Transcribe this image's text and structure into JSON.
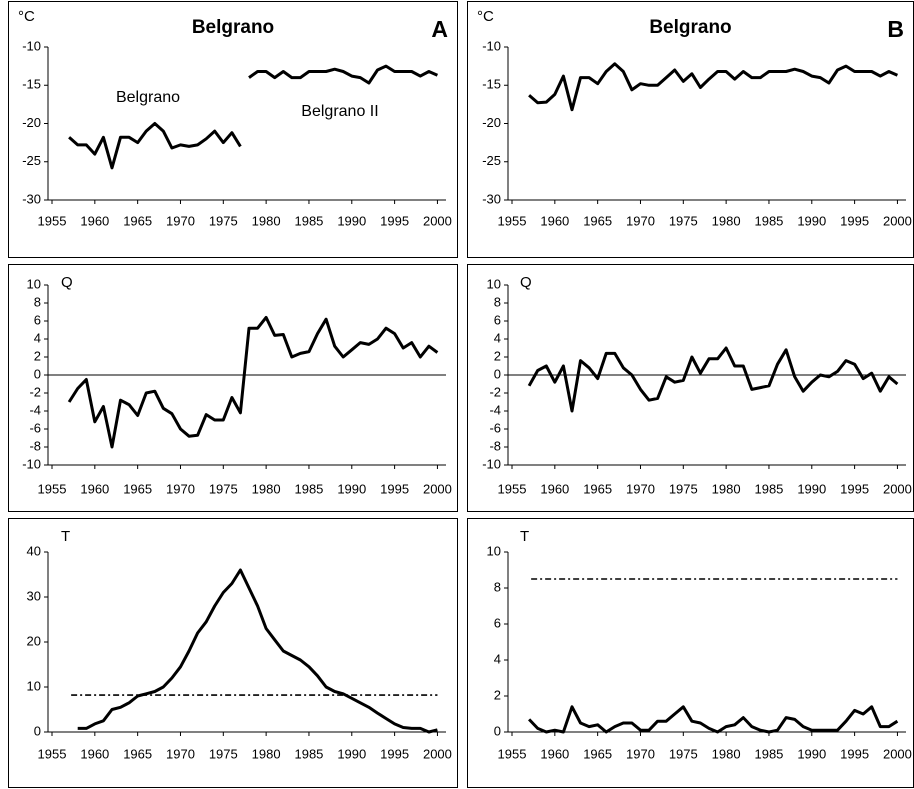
{
  "chart_data": [
    {
      "type": "line",
      "title": "Belgrano",
      "panel": "A",
      "y_label": "°C",
      "x": [
        1957,
        1958,
        1959,
        1960,
        1961,
        1962,
        1963,
        1964,
        1965,
        1966,
        1967,
        1968,
        1969,
        1970,
        1971,
        1972,
        1973,
        1974,
        1975,
        1976,
        1977,
        1978,
        1979,
        1980,
        1981,
        1982,
        1983,
        1984,
        1985,
        1986,
        1987,
        1988,
        1989,
        1990,
        1991,
        1992,
        1993,
        1994,
        1995,
        1996,
        1997,
        1998,
        1999,
        2000
      ],
      "series": [
        {
          "name": "Belgrano",
          "color": "#000000",
          "values": [
            -21.8,
            -22.8,
            -22.8,
            -24,
            -21.8,
            -25.8,
            -21.8,
            -21.8,
            -22.5,
            -21,
            -20,
            -21,
            -23.2,
            -22.8,
            -23,
            -22.8,
            -22,
            -21,
            -22.5,
            -21.2,
            -23,
            null,
            null,
            null,
            null,
            null,
            null,
            null,
            null,
            null,
            null,
            null,
            null,
            null,
            null,
            null,
            null,
            null,
            null,
            null,
            null,
            null,
            null,
            null
          ]
        },
        {
          "name": "Belgrano II",
          "color": "#000000",
          "values": [
            null,
            null,
            null,
            null,
            null,
            null,
            null,
            null,
            null,
            null,
            null,
            null,
            null,
            null,
            null,
            null,
            null,
            null,
            null,
            null,
            null,
            -14,
            -13.2,
            -13.2,
            -14,
            -13.2,
            -14,
            -14,
            -13.2,
            -13.2,
            -13.2,
            -12.9,
            -13.2,
            -13.8,
            -14,
            -14.7,
            -13,
            -12.5,
            -13.2,
            -13.2,
            -13.2,
            -13.8,
            -13.2,
            -13.7
          ]
        }
      ],
      "xlim": [
        1955,
        2001
      ],
      "xticks": [
        1955,
        1960,
        1965,
        1970,
        1975,
        1980,
        1985,
        1990,
        1995,
        2000
      ],
      "ylim": [
        -30,
        -10
      ],
      "yticks": [
        -10,
        -15,
        -20,
        -25,
        -30
      ]
    },
    {
      "type": "line",
      "title": "Belgrano",
      "panel": "B",
      "y_label": "°C",
      "x": [
        1957,
        1958,
        1959,
        1960,
        1961,
        1962,
        1963,
        1964,
        1965,
        1966,
        1967,
        1968,
        1969,
        1970,
        1971,
        1972,
        1973,
        1974,
        1975,
        1976,
        1977,
        1978,
        1979,
        1980,
        1981,
        1982,
        1983,
        1984,
        1985,
        1986,
        1987,
        1988,
        1989,
        1990,
        1991,
        1992,
        1993,
        1994,
        1995,
        1996,
        1997,
        1998,
        1999,
        2000
      ],
      "series": [
        {
          "color": "#000000",
          "values": [
            -16.3,
            -17.3,
            -17.2,
            -16.2,
            -13.8,
            -18.2,
            -14,
            -14,
            -14.8,
            -13.2,
            -12.2,
            -13.2,
            -15.6,
            -14.8,
            -15,
            -15,
            -14,
            -13,
            -14.5,
            -13.5,
            -15.3,
            -14.2,
            -13.2,
            -13.2,
            -14.2,
            -13.2,
            -14,
            -14,
            -13.2,
            -13.2,
            -13.2,
            -12.9,
            -13.2,
            -13.8,
            -14,
            -14.7,
            -13,
            -12.5,
            -13.2,
            -13.2,
            -13.2,
            -13.8,
            -13.2,
            -13.7
          ]
        }
      ],
      "xlim": [
        1955,
        2001
      ],
      "xticks": [
        1955,
        1960,
        1965,
        1970,
        1975,
        1980,
        1985,
        1990,
        1995,
        2000
      ],
      "ylim": [
        -30,
        -10
      ],
      "yticks": [
        -10,
        -15,
        -20,
        -25,
        -30
      ]
    },
    {
      "type": "line",
      "y_label": "Q",
      "zero_line": true,
      "x": [
        1957,
        1958,
        1959,
        1960,
        1961,
        1962,
        1963,
        1964,
        1965,
        1966,
        1967,
        1968,
        1969,
        1970,
        1971,
        1972,
        1973,
        1974,
        1975,
        1976,
        1977,
        1978,
        1979,
        1980,
        1981,
        1982,
        1983,
        1984,
        1985,
        1986,
        1987,
        1988,
        1989,
        1990,
        1991,
        1992,
        1993,
        1994,
        1995,
        1996,
        1997,
        1998,
        1999,
        2000
      ],
      "series": [
        {
          "color": "#000000",
          "values": [
            -3,
            -1.5,
            -0.5,
            -5.2,
            -3.5,
            -8,
            -2.8,
            -3.3,
            -4.5,
            -2,
            -1.8,
            -3.7,
            -4.3,
            -6,
            -6.8,
            -6.7,
            -4.4,
            -5,
            -5,
            -2.5,
            -4.2,
            5.2,
            5.2,
            6.4,
            4.4,
            4.5,
            2,
            2.4,
            2.6,
            4.6,
            6.2,
            3.2,
            2,
            2.8,
            3.6,
            3.4,
            4,
            5.2,
            4.6,
            3,
            3.6,
            2,
            3.2,
            2.5
          ]
        }
      ],
      "xlim": [
        1955,
        2001
      ],
      "xticks": [
        1955,
        1960,
        1965,
        1970,
        1975,
        1980,
        1985,
        1990,
        1995,
        2000
      ],
      "ylim": [
        -10,
        10
      ],
      "yticks": [
        10,
        8,
        6,
        4,
        2,
        0,
        -2,
        -4,
        -6,
        -8,
        -10
      ]
    },
    {
      "type": "line",
      "y_label": "Q",
      "zero_line": true,
      "x": [
        1957,
        1958,
        1959,
        1960,
        1961,
        1962,
        1963,
        1964,
        1965,
        1966,
        1967,
        1968,
        1969,
        1970,
        1971,
        1972,
        1973,
        1974,
        1975,
        1976,
        1977,
        1978,
        1979,
        1980,
        1981,
        1982,
        1983,
        1984,
        1985,
        1986,
        1987,
        1988,
        1989,
        1990,
        1991,
        1992,
        1993,
        1994,
        1995,
        1996,
        1997,
        1998,
        1999,
        2000
      ],
      "series": [
        {
          "color": "#000000",
          "values": [
            -1.2,
            0.5,
            1,
            -0.8,
            1,
            -4,
            1.6,
            0.8,
            -0.4,
            2.4,
            2.4,
            0.8,
            0,
            -1.6,
            -2.8,
            -2.6,
            -0.2,
            -0.8,
            -0.6,
            2,
            0.2,
            1.8,
            1.8,
            3,
            1,
            1,
            -1.6,
            -1.4,
            -1.2,
            1.2,
            2.8,
            -0.2,
            -1.8,
            -0.8,
            0,
            -0.2,
            0.4,
            1.6,
            1.2,
            -0.4,
            0.2,
            -1.8,
            -0.2,
            -1
          ]
        }
      ],
      "xlim": [
        1955,
        2001
      ],
      "xticks": [
        1955,
        1960,
        1965,
        1970,
        1975,
        1980,
        1985,
        1990,
        1995,
        2000
      ],
      "ylim": [
        -10,
        10
      ],
      "yticks": [
        10,
        8,
        6,
        4,
        2,
        0,
        -2,
        -4,
        -6,
        -8,
        -10
      ]
    },
    {
      "type": "line",
      "y_label": "T",
      "reference_line": 8.2,
      "x": [
        1957,
        1958,
        1959,
        1960,
        1961,
        1962,
        1963,
        1964,
        1965,
        1966,
        1967,
        1968,
        1969,
        1970,
        1971,
        1972,
        1973,
        1974,
        1975,
        1976,
        1977,
        1978,
        1979,
        1980,
        1981,
        1982,
        1983,
        1984,
        1985,
        1986,
        1987,
        1988,
        1989,
        1990,
        1991,
        1992,
        1993,
        1994,
        1995,
        1996,
        1997,
        1998,
        1999,
        2000
      ],
      "series": [
        {
          "color": "#000000",
          "values": [
            null,
            0.8,
            0.8,
            1.8,
            2.5,
            5,
            5.5,
            6.5,
            8,
            8.5,
            9,
            10,
            12,
            14.5,
            18,
            22,
            24.5,
            28,
            31,
            33,
            36,
            32,
            28,
            23,
            20.5,
            18,
            17,
            16,
            14.5,
            12.5,
            10,
            9,
            8.5,
            7.5,
            6.5,
            5.5,
            4.2,
            3,
            1.8,
            1,
            0.8,
            0.8,
            0,
            0.5
          ]
        }
      ],
      "xlim": [
        1955,
        2001
      ],
      "xticks": [
        1955,
        1960,
        1965,
        1970,
        1975,
        1980,
        1985,
        1990,
        1995,
        2000
      ],
      "ylim": [
        0,
        40
      ],
      "yticks": [
        40,
        30,
        20,
        10,
        0
      ]
    },
    {
      "type": "line",
      "y_label": "T",
      "reference_line": 8.5,
      "x": [
        1957,
        1958,
        1959,
        1960,
        1961,
        1962,
        1963,
        1964,
        1965,
        1966,
        1967,
        1968,
        1969,
        1970,
        1971,
        1972,
        1973,
        1974,
        1975,
        1976,
        1977,
        1978,
        1979,
        1980,
        1981,
        1982,
        1983,
        1984,
        1985,
        1986,
        1987,
        1988,
        1989,
        1990,
        1991,
        1992,
        1993,
        1994,
        1995,
        1996,
        1997,
        1998,
        1999,
        2000
      ],
      "series": [
        {
          "color": "#000000",
          "values": [
            0.7,
            0.2,
            0,
            0.1,
            0,
            1.4,
            0.5,
            0.3,
            0.4,
            0,
            0.3,
            0.5,
            0.5,
            0.1,
            0.1,
            0.6,
            0.6,
            1,
            1.4,
            0.6,
            0.5,
            0.2,
            0,
            0.3,
            0.4,
            0.8,
            0.3,
            0.1,
            0,
            0.1,
            0.8,
            0.7,
            0.3,
            0.1,
            0.1,
            0.1,
            0.1,
            0.6,
            1.2,
            1,
            1.4,
            0.3,
            0.3,
            0.6
          ]
        }
      ],
      "xlim": [
        1955,
        2001
      ],
      "xticks": [
        1955,
        1960,
        1965,
        1970,
        1975,
        1980,
        1985,
        1990,
        1995,
        2000
      ],
      "ylim": [
        0,
        10
      ],
      "yticks": [
        10,
        8,
        6,
        4,
        2,
        0
      ]
    }
  ]
}
